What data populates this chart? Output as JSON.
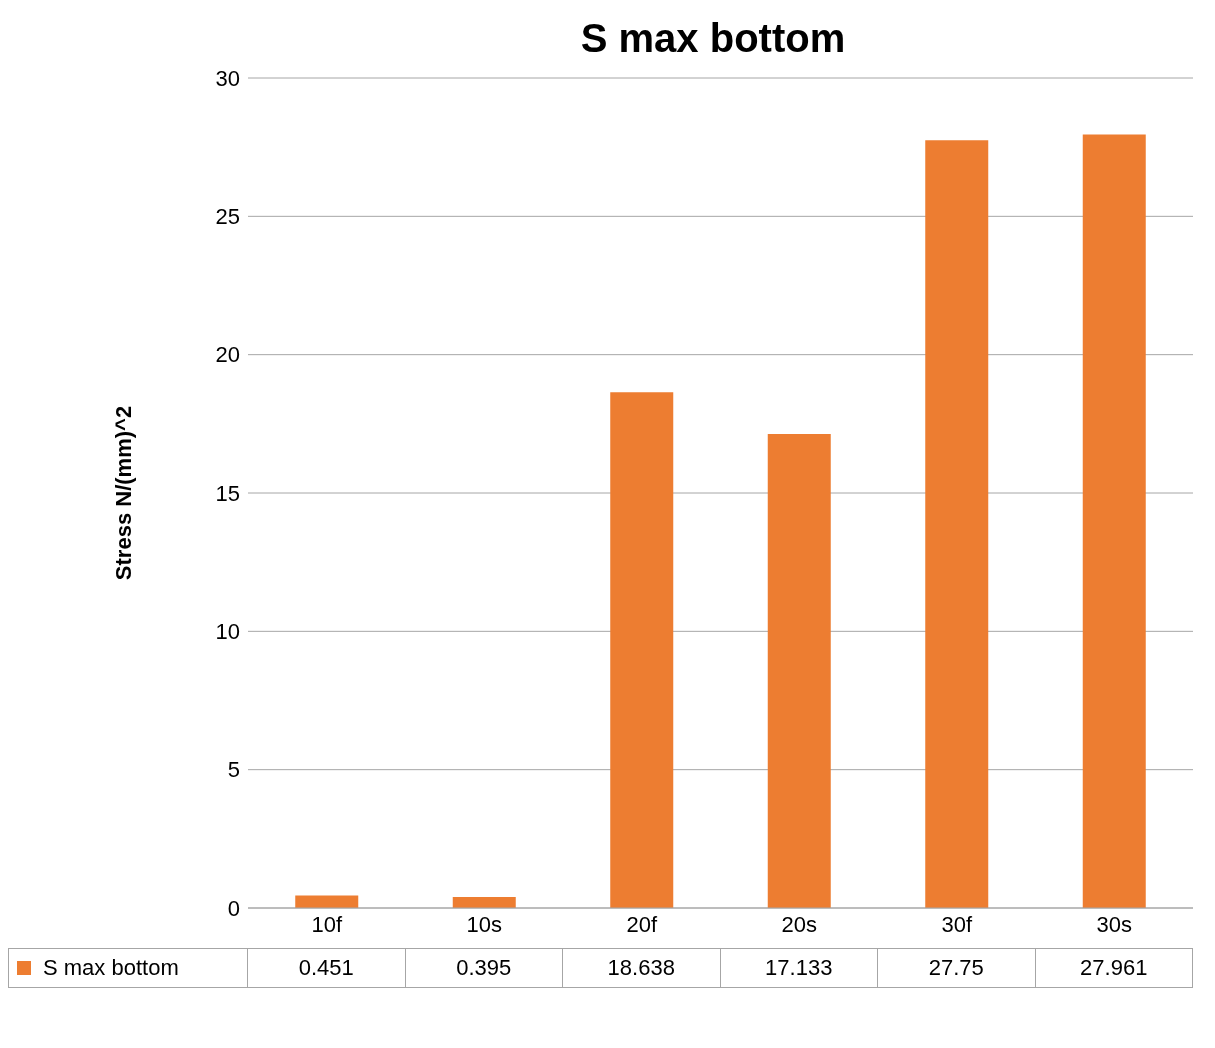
{
  "chart_data": {
    "type": "bar",
    "title": "S max bottom",
    "ylabel": "Stress N/(mm)^2",
    "categories": [
      "10f",
      "10s",
      "20f",
      "20s",
      "30f",
      "30s"
    ],
    "series": [
      {
        "name": "S max bottom",
        "color": "#ed7d31",
        "values": [
          0.451,
          0.395,
          18.638,
          17.133,
          27.75,
          27.961
        ]
      }
    ],
    "ylim": [
      0,
      30
    ],
    "yticks": [
      0,
      5,
      10,
      15,
      20,
      25,
      30
    ],
    "grid": "y",
    "data_labels": true
  }
}
